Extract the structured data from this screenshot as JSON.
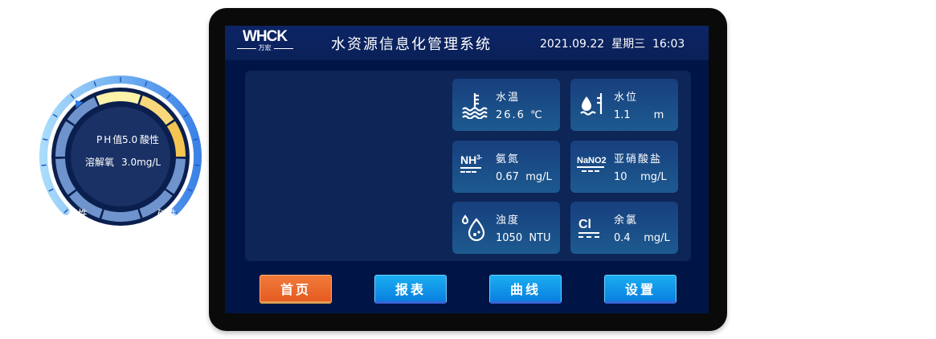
{
  "header": {
    "logo_text": "WHCK",
    "logo_sub": "万宏",
    "title": "水资源信息化管理系统",
    "date": "2021.09.22",
    "weekday": "星期三",
    "time": "16:03"
  },
  "gauge": {
    "ticks": [
      "0",
      "1",
      "2",
      "3",
      "4",
      "5",
      "6",
      "7",
      "8",
      "9",
      "10",
      "11",
      "12",
      "13",
      "14"
    ],
    "left_label": "酸性",
    "right_label": "碱性",
    "ph_label": "PH值",
    "ph_value": "5.0",
    "ph_state": "酸性",
    "do_label": "溶解氧",
    "do_value": "3.0mg/L",
    "pointer_value": 5,
    "min": 0,
    "max": 14,
    "colors": {
      "arc_start": "#a9dcfb",
      "arc_end": "#3b82e6",
      "segment": "#6f93cc",
      "yellow1": "#fdf3a8",
      "yellow2": "#f8d87a",
      "yellow3": "#f5c552"
    }
  },
  "cards": [
    {
      "label": "水温",
      "value": "26.6",
      "unit": "℃",
      "icon": "thermometer-water-icon"
    },
    {
      "label": "水位",
      "value": "1.1",
      "unit": "m",
      "icon": "water-level-icon"
    },
    {
      "label": "氨氮",
      "value": "0.67",
      "unit": "mg/L",
      "icon": "nh3-icon"
    },
    {
      "label": "亚硝酸盐",
      "value": "10",
      "unit": "mg/L",
      "icon": "nano2-icon"
    },
    {
      "label": "浊度",
      "value": "1050",
      "unit": "NTU",
      "icon": "turbidity-drops-icon"
    },
    {
      "label": "余氯",
      "value": "0.4",
      "unit": "mg/L",
      "icon": "chlorine-icon"
    }
  ],
  "icon_text": {
    "nh3": "NH",
    "nh3_sup": "3-",
    "nano2": "NaNO2",
    "cl": "Cl"
  },
  "nav": [
    {
      "label": "首页",
      "active": true
    },
    {
      "label": "报表"
    },
    {
      "label": "曲线"
    },
    {
      "label": "设置"
    }
  ],
  "colors": {
    "active_button": "#e8632a",
    "button": "#1296ea",
    "screen_bg": "#001546"
  }
}
